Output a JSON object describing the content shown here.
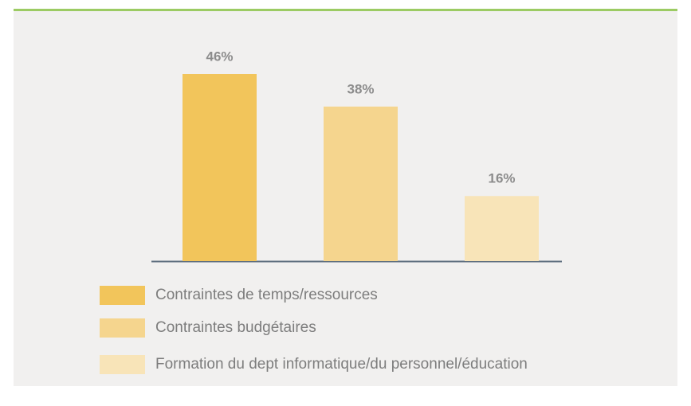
{
  "chart_data": {
    "type": "bar",
    "categories": [
      "Contraintes de temps/ressources",
      "Contraintes budgétaires",
      "Formation du dept informatique/du personnel/éducation"
    ],
    "values": [
      46,
      38,
      16
    ],
    "value_labels": [
      "46%",
      "38%",
      "16%"
    ],
    "colors": [
      "#f2c55b",
      "#f5d58e",
      "#f8e4b8"
    ]
  }
}
